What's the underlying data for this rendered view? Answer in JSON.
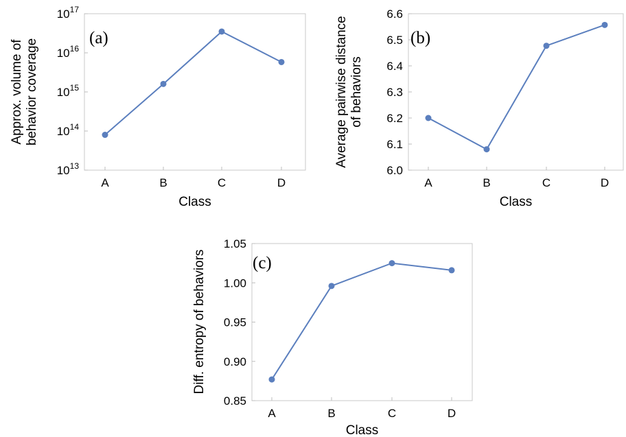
{
  "chart_data": [
    {
      "type": "line",
      "panel_label": "(a)",
      "xlabel": "Class",
      "ylabel": [
        "Approx. volume of",
        "behavior coverage"
      ],
      "categories": [
        "A",
        "B",
        "C",
        "D"
      ],
      "values": [
        80000000000000.0,
        1600000000000000.0,
        3.5e+16,
        5800000000000000.0
      ],
      "yscale": "log",
      "ylim": [
        10000000000000.0,
        1e+17
      ],
      "yticks": [
        {
          "value": 10000000000000.0,
          "base": "10",
          "exp": "13"
        },
        {
          "value": 100000000000000.0,
          "base": "10",
          "exp": "14"
        },
        {
          "value": 1000000000000000.0,
          "base": "10",
          "exp": "15"
        },
        {
          "value": 1e+16,
          "base": "10",
          "exp": "16"
        },
        {
          "value": 1e+17,
          "base": "10",
          "exp": "17"
        }
      ],
      "color": "#5b7fbe"
    },
    {
      "type": "line",
      "panel_label": "(b)",
      "xlabel": "Class",
      "ylabel": [
        "Average pairwise distance",
        "of behaviors"
      ],
      "categories": [
        "A",
        "B",
        "C",
        "D"
      ],
      "values": [
        6.2,
        6.08,
        6.477,
        6.557
      ],
      "yscale": "linear",
      "ylim": [
        6.0,
        6.6
      ],
      "yticks": [
        {
          "value": 6.0,
          "label": "6.0"
        },
        {
          "value": 6.1,
          "label": "6.1"
        },
        {
          "value": 6.2,
          "label": "6.2"
        },
        {
          "value": 6.3,
          "label": "6.3"
        },
        {
          "value": 6.4,
          "label": "6.4"
        },
        {
          "value": 6.5,
          "label": "6.5"
        },
        {
          "value": 6.6,
          "label": "6.6"
        }
      ],
      "color": "#5b7fbe"
    },
    {
      "type": "line",
      "panel_label": "(c)",
      "xlabel": "Class",
      "ylabel": [
        "Diff. entropy of behaviors"
      ],
      "categories": [
        "A",
        "B",
        "C",
        "D"
      ],
      "values": [
        0.877,
        0.996,
        1.025,
        1.016
      ],
      "yscale": "linear",
      "ylim": [
        0.85,
        1.05
      ],
      "yticks": [
        {
          "value": 0.85,
          "label": "0.85"
        },
        {
          "value": 0.9,
          "label": "0.90"
        },
        {
          "value": 0.95,
          "label": "0.95"
        },
        {
          "value": 1.0,
          "label": "1.00"
        },
        {
          "value": 1.05,
          "label": "1.05"
        }
      ],
      "color": "#5b7fbe"
    }
  ]
}
